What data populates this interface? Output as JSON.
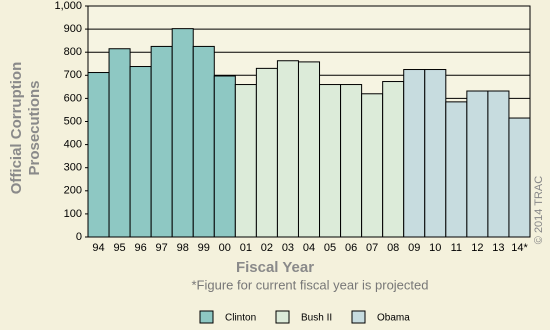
{
  "chart_data": {
    "type": "bar",
    "ylabel": [
      "Official Corruption",
      "Prosecutions"
    ],
    "xlabel": "Fiscal Year",
    "note": "*Figure for current fiscal year is projected",
    "credit": "© 2014 TRAC",
    "categories": [
      "94",
      "95",
      "96",
      "97",
      "98",
      "99",
      "00",
      "01",
      "02",
      "03",
      "04",
      "05",
      "06",
      "07",
      "08",
      "09",
      "10",
      "11",
      "12",
      "13",
      "14*"
    ],
    "series": [
      {
        "name": "Clinton",
        "color": "#8ec8c3",
        "values": [
          712,
          815,
          738,
          825,
          902,
          825,
          697,
          null,
          null,
          null,
          null,
          null,
          null,
          null,
          null,
          null,
          null,
          null,
          null,
          null,
          null
        ]
      },
      {
        "name": "Bush II",
        "color": "#dcebd9",
        "values": [
          null,
          null,
          null,
          null,
          null,
          null,
          null,
          660,
          730,
          763,
          758,
          660,
          660,
          620,
          673,
          null,
          null,
          null,
          null,
          null,
          null
        ]
      },
      {
        "name": "Obama",
        "color": "#c7dcdf",
        "values": [
          null,
          null,
          null,
          null,
          null,
          null,
          null,
          null,
          null,
          null,
          null,
          null,
          null,
          null,
          null,
          725,
          725,
          585,
          632,
          632,
          515
        ]
      }
    ],
    "ylim": [
      0,
      1000
    ],
    "yticks": [
      0,
      100,
      200,
      300,
      400,
      500,
      600,
      700,
      800,
      900,
      {
        "value": 1000,
        "label": "1,000"
      }
    ],
    "grid": true
  }
}
